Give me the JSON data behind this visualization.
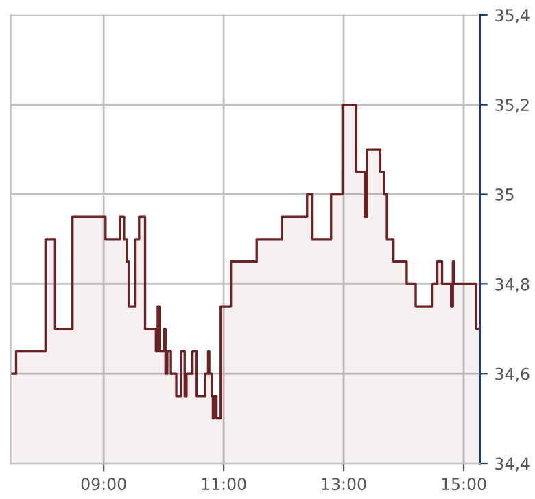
{
  "chart_data": {
    "type": "area",
    "x": [
      7.48,
      7.54,
      7.54,
      8.03,
      8.03,
      8.19,
      8.19,
      8.48,
      8.48,
      9.03,
      9.03,
      9.27,
      9.27,
      9.34,
      9.34,
      9.39,
      9.39,
      9.42,
      9.42,
      9.53,
      9.53,
      9.59,
      9.59,
      9.69,
      9.69,
      9.87,
      9.87,
      9.9,
      9.9,
      9.93,
      9.93,
      10.01,
      10.01,
      10.03,
      10.03,
      10.06,
      10.06,
      10.12,
      10.12,
      10.21,
      10.21,
      10.29,
      10.29,
      10.35,
      10.35,
      10.38,
      10.38,
      10.48,
      10.48,
      10.55,
      10.55,
      10.69,
      10.69,
      10.74,
      10.74,
      10.76,
      10.76,
      10.8,
      10.8,
      10.82,
      10.82,
      10.84,
      10.84,
      10.88,
      10.88,
      10.95,
      10.95,
      11.12,
      11.12,
      11.55,
      11.55,
      11.97,
      11.97,
      12.39,
      12.39,
      12.48,
      12.48,
      12.79,
      12.79,
      12.98,
      12.98,
      13.21,
      13.21,
      13.35,
      13.35,
      13.39,
      13.39,
      13.61,
      13.61,
      13.67,
      13.67,
      13.72,
      13.72,
      13.83,
      13.83,
      14.05,
      14.05,
      14.2,
      14.2,
      14.48,
      14.48,
      14.56,
      14.56,
      14.64,
      14.64,
      14.79,
      14.79,
      14.82,
      14.82,
      14.84,
      14.84,
      15.21,
      15.21,
      15.27
    ],
    "series": [
      {
        "color": "#6b2224",
        "values": [
          34.6,
          34.6,
          34.65,
          34.65,
          34.9,
          34.9,
          34.7,
          34.7,
          34.95,
          34.95,
          34.9,
          34.9,
          34.95,
          34.95,
          34.9,
          34.9,
          34.85,
          34.85,
          34.75,
          34.75,
          34.9,
          34.9,
          34.95,
          34.95,
          34.7,
          34.7,
          34.65,
          34.65,
          34.75,
          34.75,
          34.65,
          34.65,
          34.7,
          34.7,
          34.6,
          34.6,
          34.65,
          34.65,
          34.6,
          34.6,
          34.55,
          34.55,
          34.65,
          34.65,
          34.55,
          34.55,
          34.6,
          34.6,
          34.65,
          34.65,
          34.55,
          34.55,
          34.6,
          34.6,
          34.65,
          34.65,
          34.6,
          34.6,
          34.55,
          34.55,
          34.5,
          34.5,
          34.55,
          34.55,
          34.5,
          34.5,
          34.75,
          34.75,
          34.85,
          34.85,
          34.9,
          34.9,
          34.95,
          34.95,
          35.0,
          35.0,
          34.9,
          34.9,
          35.0,
          35.0,
          35.2,
          35.2,
          35.05,
          35.05,
          34.95,
          34.95,
          35.1,
          35.1,
          35.05,
          35.05,
          35.0,
          35.0,
          34.9,
          34.9,
          34.85,
          34.85,
          34.8,
          34.8,
          34.75,
          34.75,
          34.8,
          34.8,
          34.85,
          34.85,
          34.8,
          34.8,
          34.75,
          34.75,
          34.85,
          34.85,
          34.8,
          34.8,
          34.7,
          34.7
        ]
      }
    ],
    "xlim": [
      7.45,
      15.27
    ],
    "xticks": [
      {
        "value": 9,
        "label": "09:00"
      },
      {
        "value": 11,
        "label": "11:00"
      },
      {
        "value": 13,
        "label": "13:00"
      },
      {
        "value": 15,
        "label": "15:00"
      }
    ],
    "ylim": [
      34.4,
      35.4
    ],
    "yticks": [
      {
        "value": 34.4,
        "label": "34,4"
      },
      {
        "value": 34.6,
        "label": "34,6"
      },
      {
        "value": 34.8,
        "label": "34,8"
      },
      {
        "value": 35,
        "label": "35"
      },
      {
        "value": 35.2,
        "label": "35,2"
      },
      {
        "value": 35.4,
        "label": "35,4"
      }
    ],
    "grid": true
  }
}
